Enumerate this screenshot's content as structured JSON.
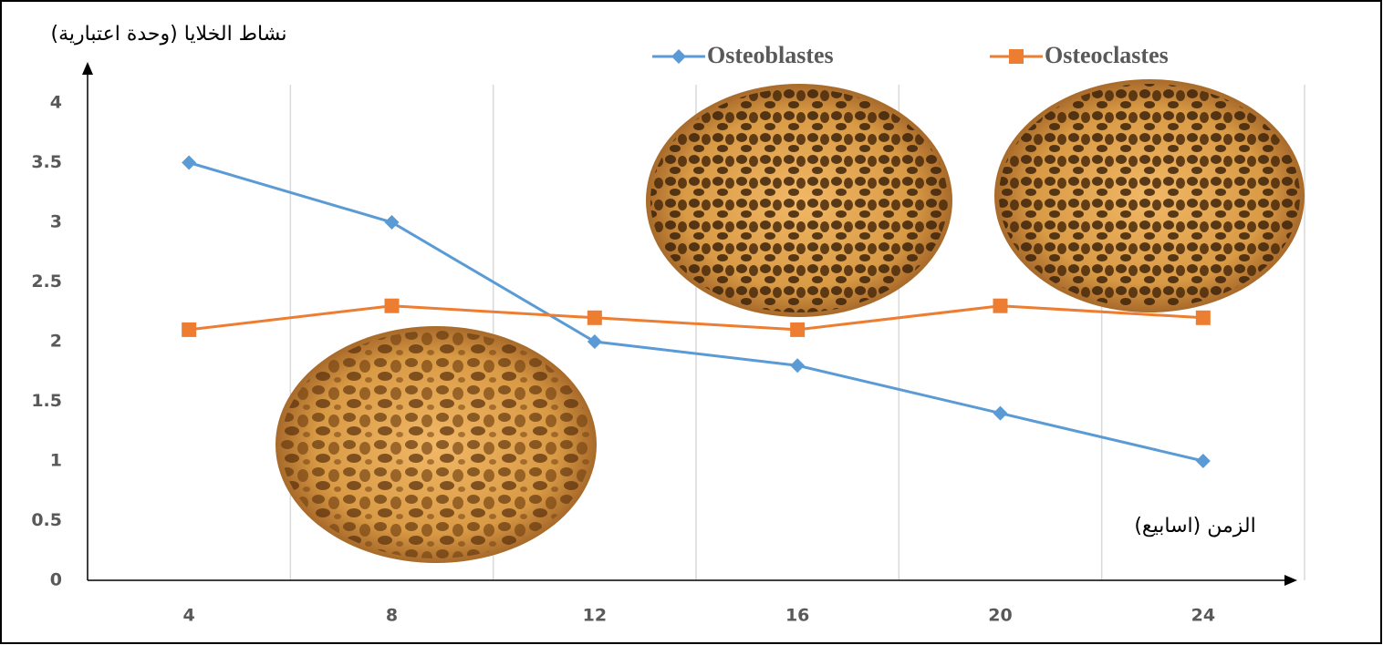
{
  "chart_data": {
    "type": "line",
    "y_label": "نشاط الخلايا (وحدة اعتبارية)",
    "x_label": "الزمن (اسابيع)",
    "categories": [
      "4",
      "8",
      "12",
      "16",
      "20",
      "24"
    ],
    "series": [
      {
        "name": "Osteoblastes",
        "color": "#5b9bd5",
        "marker": "diamond",
        "values": [
          3.5,
          3,
          2,
          1.8,
          1.4,
          1
        ]
      },
      {
        "name": "Osteoclastes",
        "color": "#ed7d31",
        "marker": "square",
        "values": [
          2.1,
          2.3,
          2.2,
          2.1,
          2.3,
          2.2
        ]
      }
    ],
    "ylim": [
      0,
      4
    ],
    "yticks": [
      0,
      0.5,
      1,
      1.5,
      2,
      2.5,
      3,
      3.5,
      4
    ],
    "legend": "top"
  }
}
